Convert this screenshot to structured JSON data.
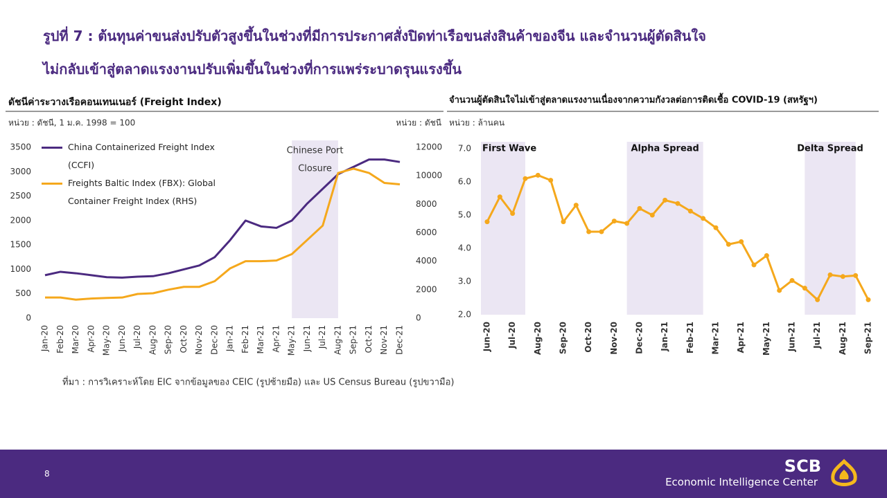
{
  "header": {
    "title": [
      "รูปที่ 7 : ต้นทุนค่าขนส่งปรับตัวสูงขึ้นในช่วงที่มีการประกาศสั่งปิดท่าเรือขนส่งสินค้าของจีน และจำนวนผู้ตัดสินใจ",
      "ไม่กลับเข้าสู่ตลาดแรงงานปรับเพิ่มขึ้นในช่วงที่การแพร่ระบาดรุนแรงขึ้น"
    ]
  },
  "chart_data": [
    {
      "type": "line",
      "title": "ดัชนีค่าระวางเรือคอนเทนเนอร์ (Freight Index)",
      "unit_left": "หน่วย : ดัชนี, 1 ม.ค. 1998  = 100",
      "unit_right": "หน่วย : ดัชนี",
      "categories": [
        "Jan-20",
        "Feb-20",
        "Mar-20",
        "Apr-20",
        "May-20",
        "Jun-20",
        "Jul-20",
        "Aug-20",
        "Sep-20",
        "Oct-20",
        "Nov-20",
        "Dec-20",
        "Jan-21",
        "Feb-21",
        "Mar-21",
        "Apr-21",
        "May-21",
        "Jun-21",
        "Jul-21",
        "Aug-21",
        "Sep-21",
        "Oct-21",
        "Nov-21",
        "Dec-21"
      ],
      "series": [
        {
          "name": "China Containerized Freight Index (CCFI)",
          "color": "#4b2a80",
          "values": [
            880,
            950,
            920,
            880,
            840,
            830,
            850,
            860,
            920,
            1000,
            1080,
            1250,
            1600,
            2000,
            1880,
            1850,
            2000,
            2350,
            2650,
            2950,
            3100,
            3250,
            3250,
            3200
          ]
        },
        {
          "name": "Freights Baltic Index (FBX): Global Container Freight Index (RHS)",
          "color": "#f5a81c",
          "axis": "y2",
          "values": [
            1450,
            1450,
            1300,
            1380,
            1420,
            1450,
            1700,
            1750,
            2000,
            2200,
            2200,
            2600,
            3500,
            4000,
            4000,
            4050,
            4500,
            5500,
            6500,
            10200,
            10500,
            10200,
            9500,
            9400
          ]
        }
      ],
      "ylim": [
        0,
        3500
      ],
      "yticks": [
        0,
        500,
        1000,
        1500,
        2000,
        2500,
        3000,
        3500
      ],
      "y2lim": [
        0,
        12000
      ],
      "y2ticks": [
        0,
        2000,
        4000,
        6000,
        8000,
        10000,
        12000
      ],
      "annotations": [
        {
          "text": [
            "Chinese Port",
            "Closure"
          ],
          "start": "May-21",
          "end": "Aug-21"
        }
      ]
    },
    {
      "type": "line",
      "markers": true,
      "title": "จำนวนผู้ตัดสินใจไม่เข้าสู่ตลาดแรงงานเนื่องจากความกังวลต่อการติดเชื้อ COVID-19 (สหรัฐฯ)",
      "unit_left": "หน่วย : ล้านคน",
      "categories": [
        "Jun-20",
        null,
        "Jul-20",
        null,
        "Aug-20",
        null,
        "Sep-20",
        null,
        "Oct-20",
        null,
        "Nov-20",
        null,
        "Dec-20",
        null,
        "Jan-21",
        null,
        "Feb-21",
        null,
        "Mar-21",
        null,
        "Apr-21",
        null,
        "May-21",
        null,
        "Jun-21",
        null,
        "Jul-21",
        null,
        "Aug-21",
        null,
        "Sep-21"
      ],
      "values": [
        4.8,
        5.55,
        5.05,
        6.1,
        6.2,
        6.05,
        4.8,
        5.3,
        4.5,
        4.5,
        4.82,
        4.75,
        5.2,
        5.0,
        5.45,
        5.35,
        5.12,
        4.9,
        4.62,
        4.12,
        4.2,
        3.5,
        3.78,
        2.73,
        3.03,
        2.8,
        2.45,
        3.2,
        3.15,
        3.18,
        2.45
      ],
      "color": "#f5a81c",
      "ylim": [
        2,
        7
      ],
      "yticks": [
        {
          "value": 2,
          "label": "2.0"
        },
        {
          "value": 3,
          "label": "3.0"
        },
        {
          "value": 4,
          "label": "4.0"
        },
        {
          "value": 5,
          "label": "5.0"
        },
        {
          "value": 6,
          "label": "6.0"
        },
        {
          "value": 7,
          "label": "7.0"
        }
      ],
      "annotations": [
        {
          "text": "First Wave",
          "start": "Jun-20",
          "end": "Jul-20"
        },
        {
          "text": "Alpha Spread",
          "start": "Dec-20",
          "end": "Feb-21"
        },
        {
          "text": "Delta Spread",
          "start": "Jul-21",
          "end": "Aug-21"
        }
      ]
    }
  ],
  "source": "ที่มา : การวิเคราะห์โดย EIC จากข้อมูลของ CEIC (รูปซ้ายมือ) และ US Census Bureau (รูปขวามือ)",
  "page_number": "8",
  "footer": {
    "brand": "SCB",
    "unit": "Economic Intelligence Center"
  }
}
